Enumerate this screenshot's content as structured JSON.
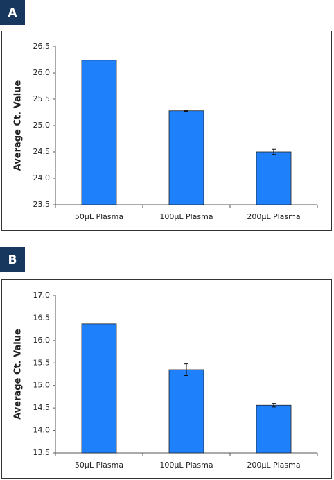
{
  "chart_data": [
    {
      "type": "bar",
      "panel_label": "A",
      "ylabel": "Average Ct. Value",
      "categories": [
        "50µL Plasma",
        "100µL Plasma",
        "200µL Plasma"
      ],
      "values": [
        26.24,
        25.28,
        24.5
      ],
      "errors": [
        0,
        0.01,
        0.05
      ],
      "color": "#1e80fa",
      "ylim": [
        23.5,
        26.5
      ],
      "yticks": [
        23.5,
        {
          "value": 24,
          "label": "24.0"
        },
        24.5,
        {
          "value": 25,
          "label": "25.0"
        },
        25.5,
        {
          "value": 26,
          "label": "26.0"
        },
        26.5
      ],
      "grid": false
    },
    {
      "type": "bar",
      "panel_label": "B",
      "ylabel": "Average Ct. Value",
      "categories": [
        "50µL Plasma",
        "100µL Plasma",
        "200µL Plasma"
      ],
      "values": [
        16.37,
        15.35,
        14.56
      ],
      "errors": [
        0,
        0.13,
        0.04
      ],
      "color": "#1e80fa",
      "ylim": [
        13.5,
        17
      ],
      "yticks": [
        13.5,
        {
          "value": 14,
          "label": "14.0"
        },
        14.5,
        {
          "value": 15,
          "label": "15.0"
        },
        15.5,
        {
          "value": 16,
          "label": "16.0"
        },
        16.5,
        {
          "value": 17,
          "label": "17.0"
        }
      ],
      "grid": false
    }
  ]
}
